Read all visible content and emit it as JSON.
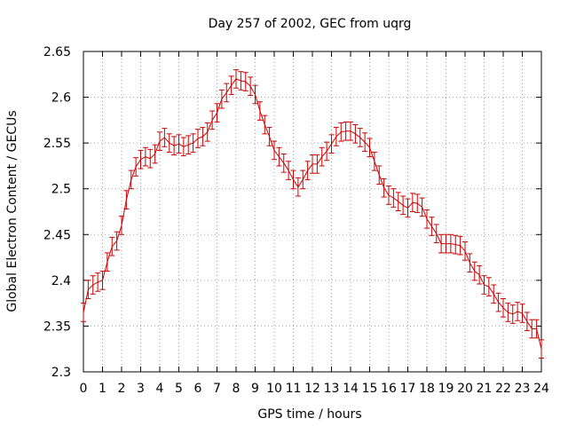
{
  "chart_data": {
    "type": "line",
    "title": "Day 257 of 2002, GEC from uqrg",
    "xlabel": "GPS time / hours",
    "ylabel": "Global Electron Content / GECUs",
    "xlim": [
      0,
      24
    ],
    "ylim": [
      2.3,
      2.65
    ],
    "grid": true,
    "x_ticks": [
      0,
      1,
      2,
      3,
      4,
      5,
      6,
      7,
      8,
      9,
      10,
      11,
      12,
      13,
      14,
      15,
      16,
      17,
      18,
      19,
      20,
      21,
      22,
      23,
      24
    ],
    "x_tick_labels": [
      "0",
      "1",
      "2",
      "3",
      "4",
      "5",
      "6",
      "7",
      "8",
      "9",
      "10",
      "11",
      "12",
      "13",
      "14",
      "15",
      "16",
      "17",
      "18",
      "19",
      "20",
      "21",
      "22",
      "23",
      "24"
    ],
    "y_ticks": [
      2.3,
      2.35,
      2.4,
      2.45,
      2.5,
      2.55,
      2.6,
      2.65
    ],
    "y_tick_labels": [
      "2.3",
      "2.35",
      "2.4",
      "2.45",
      "2.5",
      "2.55",
      "2.6",
      "2.65"
    ],
    "error": 0.01,
    "series": [
      {
        "color": "#cc0000",
        "x": [
          0,
          0.25,
          0.5,
          0.75,
          1,
          1.25,
          1.5,
          1.75,
          2,
          2.25,
          2.5,
          2.75,
          3,
          3.25,
          3.5,
          3.75,
          4,
          4.25,
          4.5,
          4.75,
          5,
          5.25,
          5.5,
          5.75,
          6,
          6.25,
          6.5,
          6.75,
          7,
          7.25,
          7.5,
          7.75,
          8,
          8.25,
          8.5,
          8.75,
          9,
          9.25,
          9.5,
          9.75,
          10,
          10.25,
          10.5,
          10.75,
          11,
          11.25,
          11.5,
          11.75,
          12,
          12.25,
          12.5,
          12.75,
          13,
          13.25,
          13.5,
          13.75,
          14,
          14.25,
          14.5,
          14.75,
          15,
          15.25,
          15.5,
          15.75,
          16,
          16.25,
          16.5,
          16.75,
          17,
          17.25,
          17.5,
          17.75,
          18,
          18.25,
          18.5,
          18.75,
          19,
          19.25,
          19.5,
          19.75,
          20,
          20.25,
          20.5,
          20.75,
          21,
          21.25,
          21.5,
          21.75,
          22,
          22.25,
          22.5,
          22.75,
          23,
          23.25,
          23.5,
          23.75,
          24
        ],
        "y": [
          2.365,
          2.39,
          2.395,
          2.398,
          2.4,
          2.42,
          2.437,
          2.443,
          2.46,
          2.488,
          2.51,
          2.524,
          2.532,
          2.535,
          2.533,
          2.538,
          2.552,
          2.556,
          2.55,
          2.547,
          2.549,
          2.546,
          2.548,
          2.55,
          2.555,
          2.557,
          2.562,
          2.575,
          2.583,
          2.598,
          2.605,
          2.613,
          2.62,
          2.618,
          2.617,
          2.612,
          2.603,
          2.585,
          2.57,
          2.557,
          2.542,
          2.535,
          2.528,
          2.52,
          2.51,
          2.502,
          2.51,
          2.52,
          2.527,
          2.527,
          2.535,
          2.541,
          2.549,
          2.557,
          2.562,
          2.563,
          2.563,
          2.56,
          2.556,
          2.551,
          2.545,
          2.53,
          2.515,
          2.501,
          2.493,
          2.49,
          2.486,
          2.482,
          2.479,
          2.485,
          2.484,
          2.48,
          2.467,
          2.459,
          2.451,
          2.44,
          2.44,
          2.44,
          2.439,
          2.438,
          2.432,
          2.419,
          2.41,
          2.406,
          2.395,
          2.393,
          2.385,
          2.376,
          2.37,
          2.365,
          2.363,
          2.366,
          2.364,
          2.355,
          2.347,
          2.347,
          2.325
        ]
      }
    ]
  }
}
